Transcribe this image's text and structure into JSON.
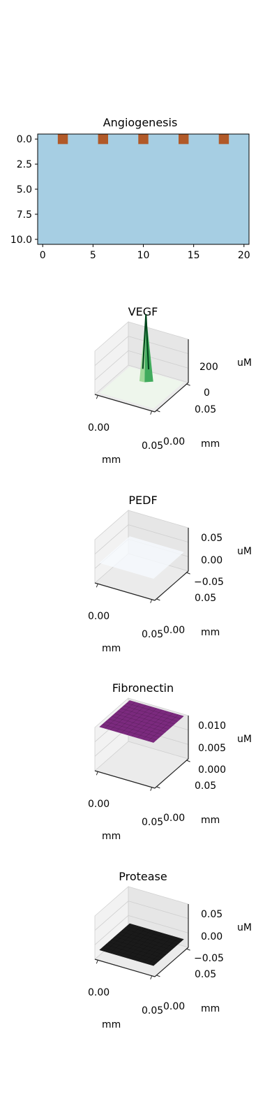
{
  "chart_data": [
    {
      "type": "heatmap",
      "title": "Angiogenesis",
      "x_ticks": [
        "0",
        "5",
        "10",
        "15",
        "20"
      ],
      "y_ticks": [
        "0.0",
        "2.5",
        "5.0",
        "7.5",
        "10.0"
      ],
      "xlim": [
        -0.5,
        20.5
      ],
      "ylim": [
        10.5,
        -0.5
      ],
      "background_color": "#a6cee3",
      "cell_color": "#b15928",
      "tip_cells": [
        {
          "x": 2,
          "y": 0
        },
        {
          "x": 6,
          "y": 0
        },
        {
          "x": 10,
          "y": 0
        },
        {
          "x": 14,
          "y": 0
        },
        {
          "x": 18,
          "y": 0
        }
      ]
    },
    {
      "type": "surface3d",
      "title": "VEGF",
      "zlabel": "uM",
      "xlabel": "mm",
      "ylabel": "mm",
      "x_ticks": [
        "0.00",
        "0.05"
      ],
      "y_ticks": [
        "0.00",
        "0.05"
      ],
      "z_ticks": [
        "0",
        "200"
      ],
      "zlim": [
        0,
        300
      ],
      "colormap": "Greens",
      "peak": {
        "x": 0.045,
        "y": 0.035,
        "z": 300
      }
    },
    {
      "type": "surface3d",
      "title": "PEDF",
      "zlabel": "uM",
      "xlabel": "mm",
      "ylabel": "mm",
      "x_ticks": [
        "0.00",
        "0.05"
      ],
      "y_ticks": [
        "0.00",
        "0.05"
      ],
      "z_ticks": [
        "0.05",
        "0.00",
        "−0.05"
      ],
      "zlim": [
        -0.05,
        0.05
      ],
      "surface_value": 0,
      "surface_color": "#f7fbff"
    },
    {
      "type": "surface3d",
      "title": "Fibronectin",
      "zlabel": "uM",
      "xlabel": "mm",
      "ylabel": "mm",
      "x_ticks": [
        "0.00",
        "0.05"
      ],
      "y_ticks": [
        "0.00",
        "0.05"
      ],
      "z_ticks": [
        "0.010",
        "0.005",
        "0.000"
      ],
      "zlim": [
        0,
        0.01
      ],
      "surface_value": 0.01,
      "surface_color": "#7b2a7e"
    },
    {
      "type": "surface3d",
      "title": "Protease",
      "zlabel": "uM",
      "xlabel": "mm",
      "ylabel": "mm",
      "x_ticks": [
        "0.00",
        "0.05"
      ],
      "y_ticks": [
        "0.00",
        "0.05"
      ],
      "z_ticks": [
        "0.05",
        "0.00",
        "−0.05"
      ],
      "zlim": [
        -0.05,
        0.05
      ],
      "surface_value": 0,
      "surface_color": "#1a1a1a"
    }
  ]
}
